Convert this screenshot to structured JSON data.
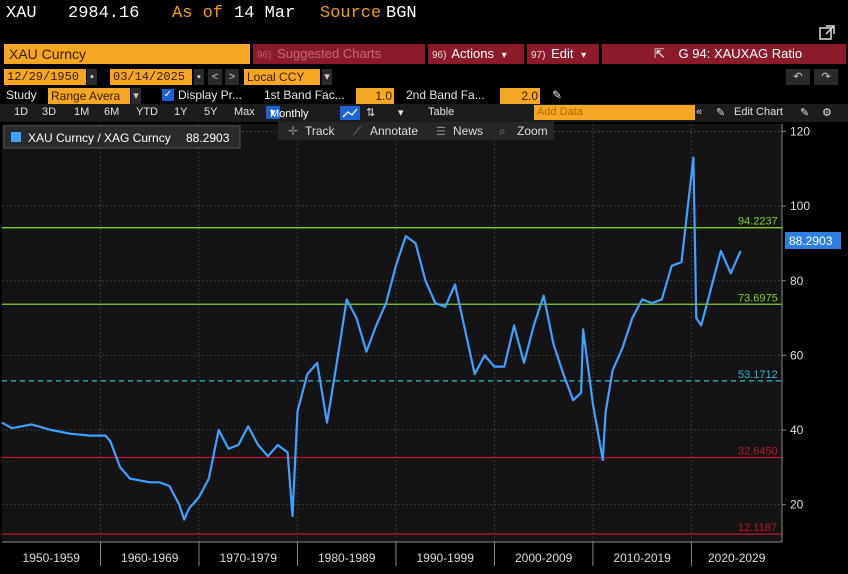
{
  "header": {
    "ticker": "XAU",
    "price": "2984.16",
    "asof_label": "As of",
    "asof_value": "14 Mar",
    "source_label": "Source",
    "source_value": "BGN"
  },
  "toolbar": {
    "security": "XAU Curncy",
    "suggested": "Suggested Charts",
    "suggested_num": "96)",
    "actions": "Actions",
    "actions_num": "96)",
    "edit": "Edit",
    "edit_num": "97)",
    "chart_title": "G 94: XAUXAG Ratio",
    "caret": "▾",
    "external": "⇱"
  },
  "dates": {
    "start": "12/29/1950",
    "end": "03/14/2025",
    "currency": "Local CCY"
  },
  "study": {
    "label": "Study",
    "value": "Range Avera",
    "display_label": "Display Pr...",
    "band1_label": "1st Band Fac...",
    "band1_value": "1.0",
    "band2_label": "2nd Band Fa...",
    "band2_value": "2.0"
  },
  "periods": [
    "1D",
    "3D",
    "1M",
    "6M",
    "YTD",
    "1Y",
    "5Y",
    "Max"
  ],
  "frequency": "Monthly",
  "table_label": "Table",
  "add_data_placeholder": "Add Data",
  "edit_chart": "Edit Chart",
  "subtools": [
    "Track",
    "Annotate",
    "News",
    "Zoom"
  ],
  "legend": {
    "label": "XAU Curncy / XAG Curncy",
    "value": "88.2903"
  },
  "colors": {
    "series": "#3fa2ff",
    "band_green": "#7ed321",
    "band_red": "#c0142c",
    "mean": "#2bb8d6",
    "orange": "#f5a623",
    "last_box": "#2d7fe0"
  },
  "chart_data": {
    "type": "line",
    "title": "XAU Curncy / XAG Curncy",
    "ylim": [
      10,
      122
    ],
    "yticks": [
      20,
      40,
      60,
      80,
      100,
      120
    ],
    "xlim": [
      1950,
      2029.2
    ],
    "decade_labels": [
      "1950-1959",
      "1960-1969",
      "1970-1979",
      "1980-1989",
      "1990-1999",
      "2000-2009",
      "2010-2019",
      "2020-2029"
    ],
    "last_value": "88.2903",
    "bands": [
      {
        "name": "upper2",
        "value": 94.2237,
        "label": "94.2237",
        "color": "#7ed321"
      },
      {
        "name": "upper1",
        "value": 73.6975,
        "label": "73.6975",
        "color": "#7ed321"
      },
      {
        "name": "mean",
        "value": 53.1712,
        "label": "53.1712",
        "color": "#2bb8d6"
      },
      {
        "name": "lower1",
        "value": 32.645,
        "label": "32.6450",
        "color": "#c0142c"
      },
      {
        "name": "lower2",
        "value": 12.1187,
        "label": "12.1187",
        "color": "#c0142c"
      }
    ],
    "series": [
      {
        "name": "XAU Curncy / XAG Curncy",
        "x": [
          1950,
          1951,
          1952,
          1953,
          1955,
          1957,
          1959,
          1960.5,
          1961,
          1962,
          1963,
          1965,
          1966,
          1967,
          1968,
          1968.5,
          1969,
          1970,
          1971,
          1972,
          1973,
          1974,
          1975,
          1976,
          1977,
          1978,
          1979,
          1979.5,
          1980,
          1981,
          1982,
          1983,
          1984,
          1985,
          1986,
          1987,
          1988,
          1989,
          1990,
          1991,
          1992,
          1993,
          1994,
          1995,
          1996,
          1997,
          1998,
          1999,
          2000,
          2001,
          2002,
          2003,
          2004,
          2005,
          2006,
          2007,
          2008,
          2008.8,
          2009,
          2010,
          2011,
          2011.3,
          2012,
          2013,
          2014,
          2015,
          2016,
          2017,
          2018,
          2019,
          2020.2,
          2020.5,
          2021,
          2022,
          2023,
          2024,
          2025
        ],
        "y": [
          42,
          40.5,
          41,
          41.5,
          40,
          39,
          38.5,
          38.5,
          37,
          30,
          27,
          26,
          26,
          25,
          20,
          16,
          19,
          22,
          27,
          40,
          35,
          36,
          41,
          36,
          33,
          36,
          34,
          17,
          45,
          55,
          58,
          42,
          58,
          75,
          70,
          61,
          68,
          74,
          84,
          92,
          90,
          80,
          74,
          73,
          79,
          67,
          55,
          60,
          57,
          57,
          68,
          58,
          68,
          76,
          63,
          55,
          48,
          50,
          67,
          47,
          32,
          45,
          56,
          62,
          70,
          75,
          74,
          75,
          84,
          85,
          113,
          70,
          68,
          78,
          88,
          82,
          88
        ]
      }
    ]
  }
}
